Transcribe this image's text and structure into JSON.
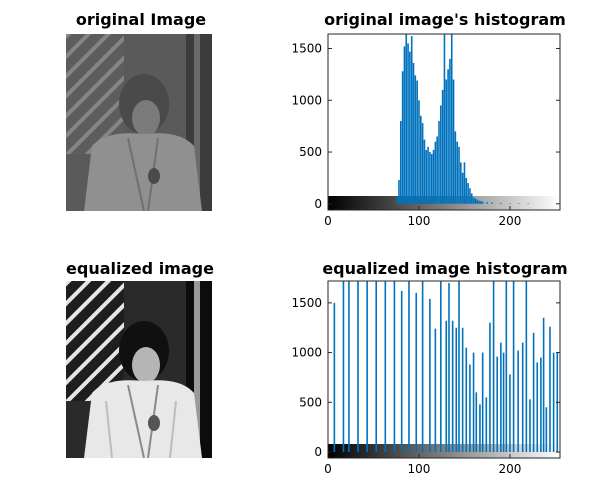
{
  "panels": {
    "original_image_title": "original Image",
    "equalized_image_title": "equalized image"
  },
  "chart_data": [
    {
      "type": "bar",
      "title": "original image's histogram",
      "xlim": [
        0,
        255
      ],
      "ylim": [
        -60,
        1640
      ],
      "xticks": [
        0,
        100,
        200
      ],
      "yticks": [
        0,
        500,
        1000,
        1500
      ],
      "colorbar": "grayscale gradient 0 to 255 along the x axis",
      "bar_color": "#0072bd",
      "x": [
        76,
        78,
        80,
        82,
        84,
        86,
        88,
        90,
        92,
        94,
        96,
        98,
        100,
        102,
        104,
        106,
        108,
        110,
        112,
        114,
        116,
        118,
        120,
        122,
        124,
        126,
        128,
        130,
        132,
        134,
        136,
        138,
        140,
        142,
        144,
        146,
        148,
        150,
        152,
        154,
        156,
        158,
        160,
        162,
        164,
        166,
        168,
        170,
        175,
        180,
        190,
        200,
        210,
        220
      ],
      "values": [
        60,
        230,
        800,
        1280,
        1520,
        1640,
        1550,
        1470,
        1620,
        1360,
        1240,
        1190,
        1000,
        850,
        780,
        620,
        520,
        550,
        500,
        480,
        520,
        600,
        650,
        800,
        950,
        1100,
        1640,
        1200,
        1300,
        1400,
        1640,
        1200,
        700,
        600,
        550,
        400,
        300,
        400,
        250,
        200,
        150,
        100,
        60,
        50,
        40,
        30,
        25,
        20,
        15,
        12,
        8,
        5,
        5,
        5
      ]
    },
    {
      "type": "bar",
      "title": "equalized image histogram",
      "xlim": [
        0,
        255
      ],
      "ylim": [
        -60,
        1720
      ],
      "xticks": [
        0,
        100,
        200
      ],
      "yticks": [
        0,
        500,
        1000,
        1500
      ],
      "colorbar": "grayscale gradient 0 to 255 along the x axis",
      "bar_color": "#0072bd",
      "x": [
        7,
        17,
        23,
        33,
        43,
        53,
        63,
        73,
        81,
        89,
        97,
        104,
        112,
        118,
        124,
        130,
        133,
        137,
        141,
        144,
        148,
        152,
        156,
        160,
        163,
        167,
        170,
        174,
        178,
        182,
        186,
        190,
        193,
        196,
        200,
        204,
        209,
        214,
        218,
        222,
        226,
        230,
        234,
        237,
        240,
        244,
        248,
        252
      ],
      "values": [
        1500,
        1720,
        1720,
        1720,
        1720,
        1720,
        1720,
        1720,
        1620,
        1720,
        1600,
        1720,
        1540,
        1240,
        1720,
        1320,
        1700,
        1320,
        1250,
        1720,
        1250,
        1050,
        880,
        1000,
        600,
        480,
        1000,
        550,
        1300,
        1720,
        960,
        1100,
        1000,
        1720,
        780,
        1720,
        1020,
        1100,
        1720,
        530,
        1200,
        900,
        950,
        1350,
        450,
        1260,
        1000,
        1000
      ]
    }
  ]
}
